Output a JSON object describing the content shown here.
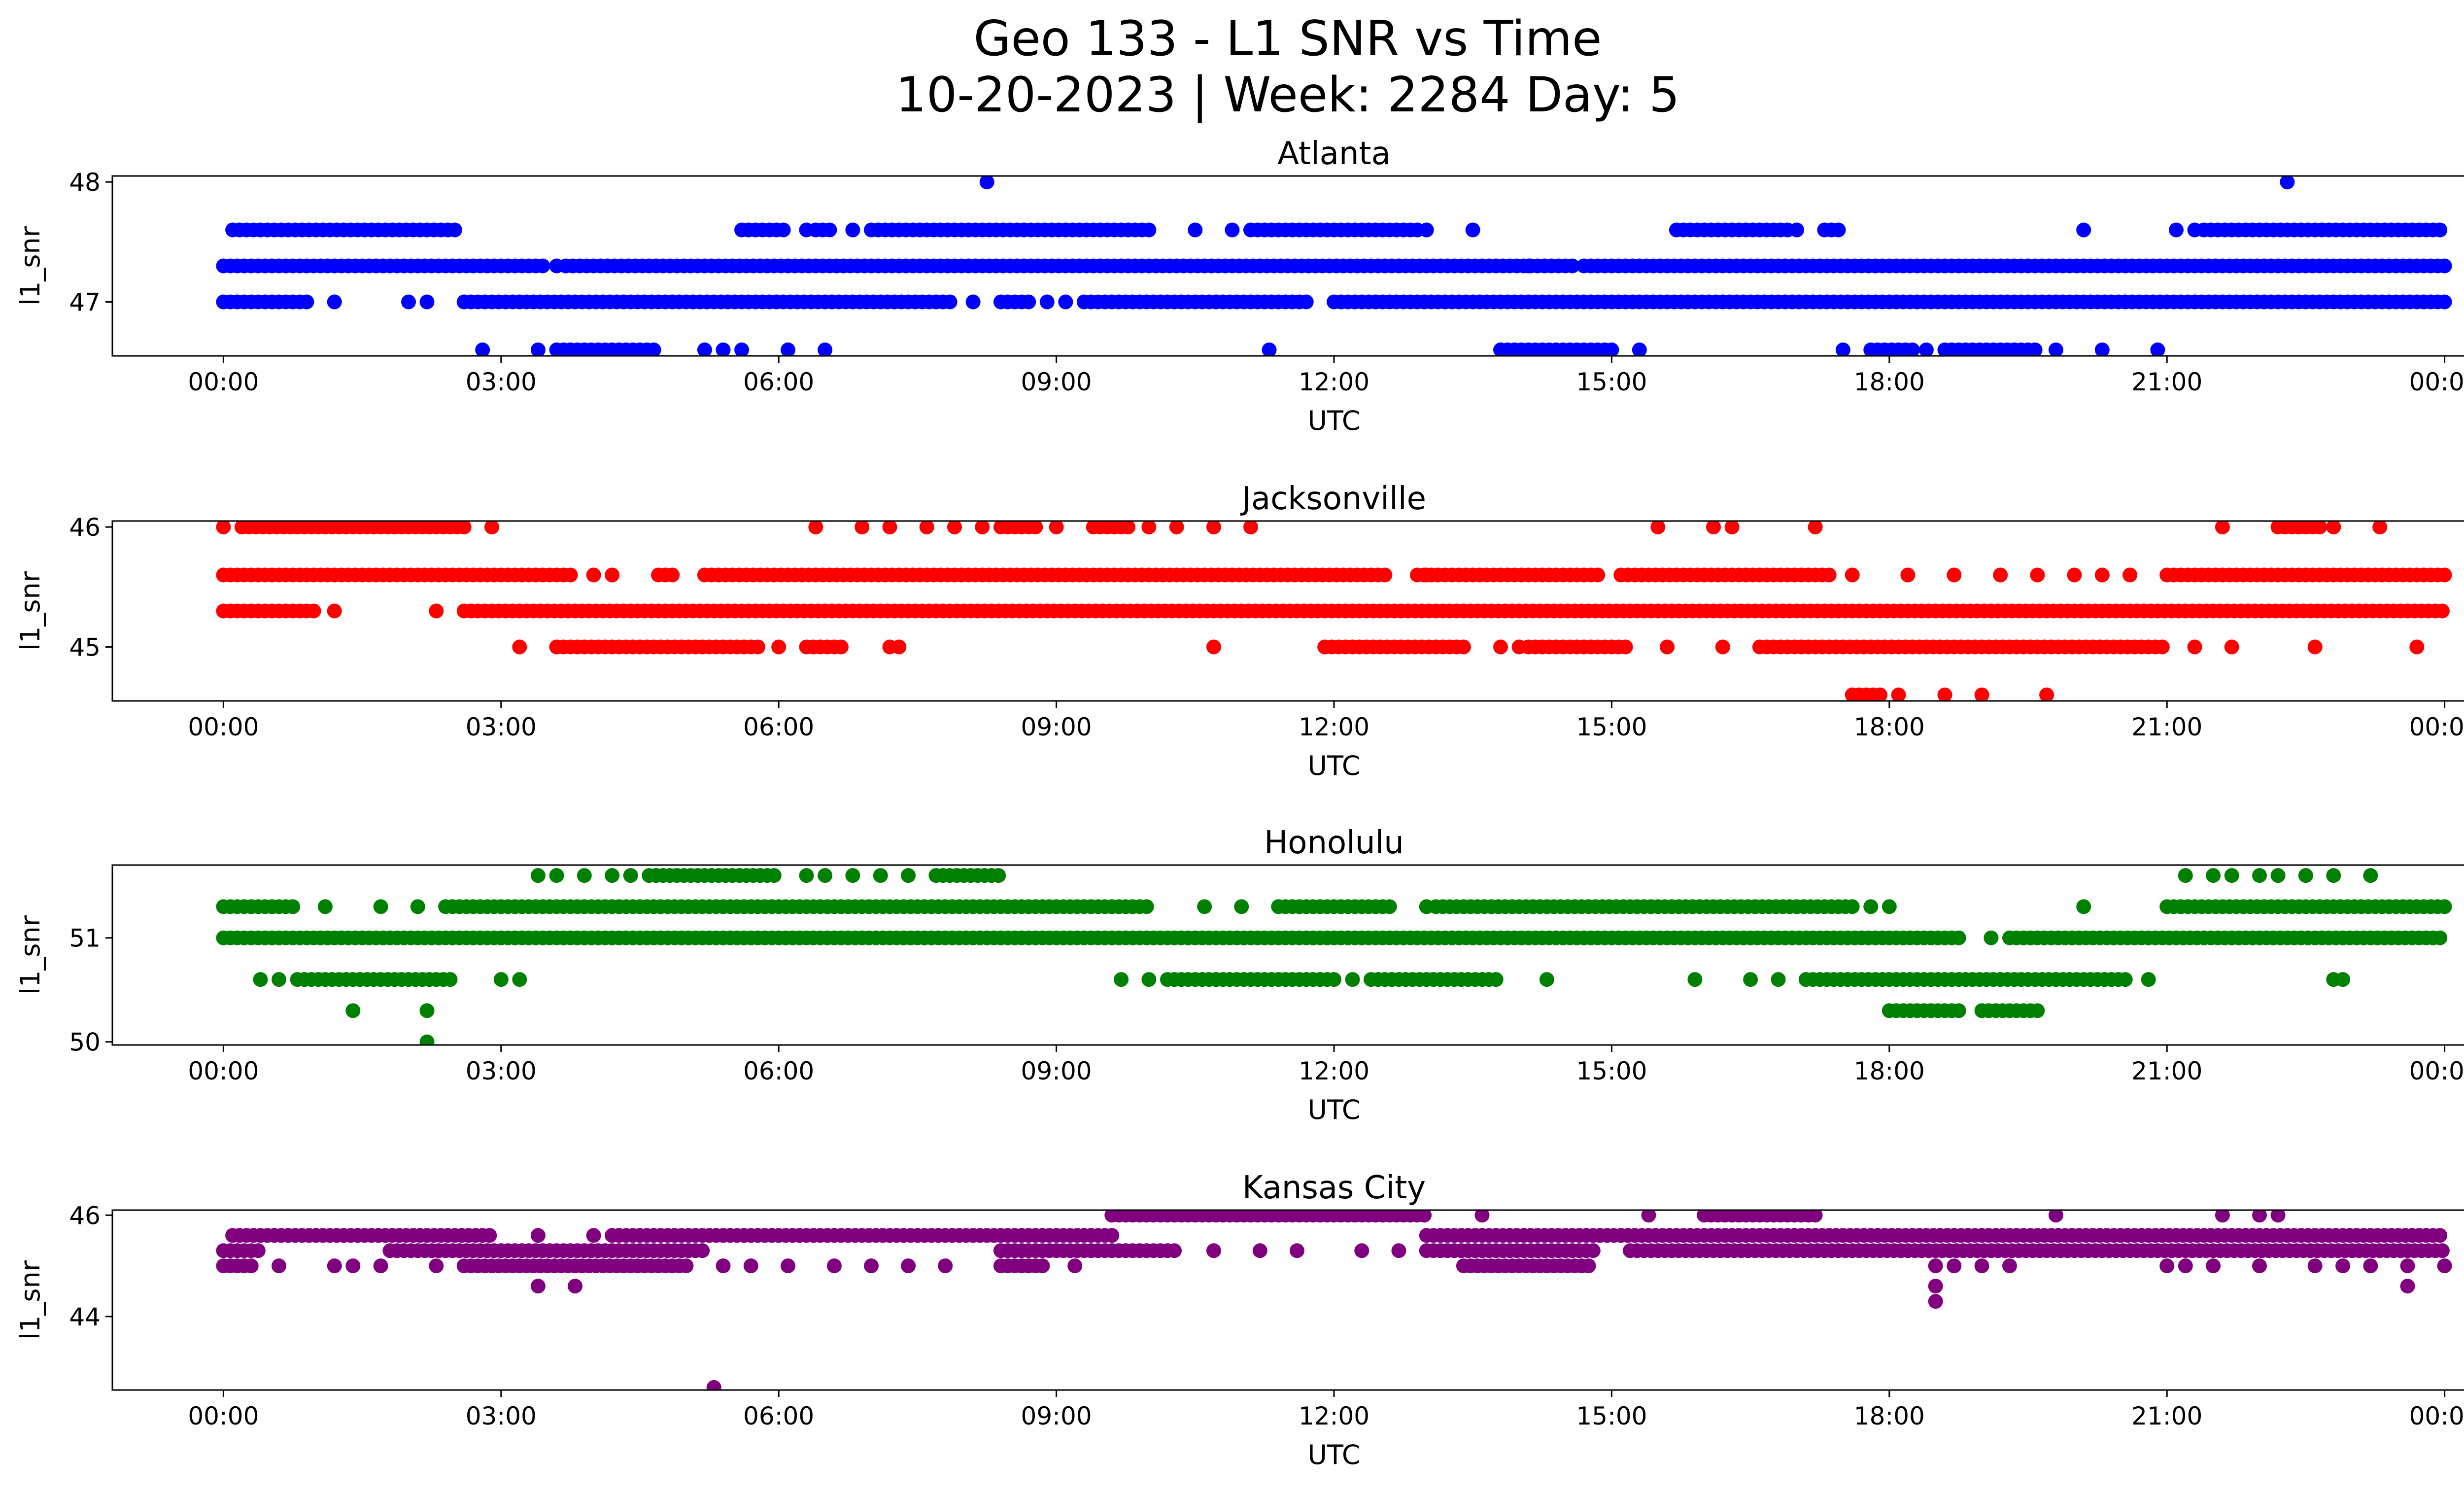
{
  "figure": {
    "title_line1": "Geo 133 - L1 SNR vs Time",
    "title_line2": "10-20-2023 | Week: 2284 Day: 5"
  },
  "chart_data": [
    {
      "type": "scatter",
      "title": "Atlanta",
      "xlabel": "UTC",
      "ylabel": "l1_snr",
      "color": "#0000ff",
      "x_ticks": [
        "00:00",
        "03:00",
        "06:00",
        "09:00",
        "12:00",
        "15:00",
        "18:00",
        "21:00",
        "00:00"
      ],
      "xlim_hours": [
        -1.2,
        25.2
      ],
      "y_ticks": [
        47,
        48
      ],
      "ylim": [
        46.55,
        48.05
      ],
      "levels": [
        {
          "y": 48.0,
          "segments": [],
          "points": [
            8.25,
            22.3
          ]
        },
        {
          "y": 47.6,
          "segments": [
            [
              0.1,
              2.5
            ],
            [
              5.6,
              6.1
            ],
            [
              6.4,
              6.6
            ],
            [
              7.0,
              10.0
            ],
            [
              11.1,
              12.9
            ],
            [
              15.7,
              16.9
            ],
            [
              17.3,
              17.5
            ],
            [
              21.4,
              24.0
            ]
          ],
          "points": [
            6.3,
            6.8,
            10.5,
            10.9,
            13.0,
            13.5,
            17.0,
            20.1,
            21.1,
            21.3
          ]
        },
        {
          "y": 47.3,
          "segments": [
            [
              0.0,
              3.5
            ],
            [
              3.7,
              14.6
            ],
            [
              14.7,
              24.0
            ]
          ],
          "points": [
            3.6,
            14.1
          ]
        },
        {
          "y": 47.0,
          "segments": [
            [
              0.0,
              0.9
            ],
            [
              2.6,
              7.9
            ],
            [
              8.4,
              8.7
            ],
            [
              9.3,
              11.7
            ],
            [
              12.0,
              24.0
            ]
          ],
          "points": [
            1.2,
            2.0,
            2.2,
            8.1,
            8.9,
            9.1,
            22.5
          ]
        },
        {
          "y": 46.6,
          "segments": [
            [
              3.6,
              4.7
            ],
            [
              13.8,
              15.0
            ],
            [
              17.8,
              18.3
            ],
            [
              18.6,
              19.6
            ]
          ],
          "points": [
            2.8,
            3.4,
            5.2,
            5.4,
            5.6,
            6.1,
            6.5,
            11.3,
            15.3,
            17.5,
            18.4,
            19.8,
            20.3,
            20.9
          ]
        }
      ]
    },
    {
      "type": "scatter",
      "title": "Jacksonville",
      "xlabel": "UTC",
      "ylabel": "l1_snr",
      "color": "#ff0000",
      "x_ticks": [
        "00:00",
        "03:00",
        "06:00",
        "09:00",
        "12:00",
        "15:00",
        "18:00",
        "21:00",
        "00:00"
      ],
      "xlim_hours": [
        -1.2,
        25.2
      ],
      "y_ticks": [
        45,
        46
      ],
      "ylim": [
        44.55,
        46.05
      ],
      "levels": [
        {
          "y": 46.0,
          "segments": [
            [
              0.2,
              2.6
            ],
            [
              8.4,
              8.8
            ],
            [
              9.4,
              9.8
            ],
            [
              22.2,
              22.7
            ]
          ],
          "points": [
            0.0,
            2.9,
            6.4,
            6.9,
            7.2,
            7.6,
            7.9,
            8.2,
            9.0,
            10.0,
            10.3,
            10.7,
            11.1,
            15.5,
            16.1,
            16.3,
            17.2,
            21.6,
            22.8,
            23.3
          ]
        },
        {
          "y": 45.6,
          "segments": [
            [
              0.0,
              3.8
            ],
            [
              4.7,
              4.9
            ],
            [
              5.2,
              12.6
            ],
            [
              12.9,
              14.9
            ],
            [
              15.1,
              17.4
            ],
            [
              21.0,
              24.0
            ]
          ],
          "points": [
            4.0,
            4.2,
            13.0,
            17.6,
            18.2,
            18.7,
            19.2,
            19.6,
            20.0,
            20.3,
            20.6
          ]
        },
        {
          "y": 45.3,
          "segments": [
            [
              0.0,
              1.0
            ],
            [
              2.6,
              24.0
            ]
          ],
          "points": [
            1.2,
            2.3
          ]
        },
        {
          "y": 45.0,
          "segments": [
            [
              3.6,
              5.8
            ],
            [
              6.3,
              6.7
            ],
            [
              11.9,
              13.4
            ],
            [
              14.1,
              15.2
            ],
            [
              16.6,
              21.0
            ]
          ],
          "points": [
            3.2,
            6.0,
            7.2,
            7.3,
            10.7,
            13.8,
            14.0,
            15.6,
            16.2,
            21.3,
            21.7,
            22.6,
            23.7
          ]
        },
        {
          "y": 44.6,
          "segments": [
            [
              17.6,
              17.9
            ]
          ],
          "points": [
            18.1,
            18.6,
            19.0,
            19.7
          ]
        }
      ]
    },
    {
      "type": "scatter",
      "title": "Honolulu",
      "xlabel": "UTC",
      "ylabel": "l1_snr",
      "color": "#008000",
      "x_ticks": [
        "00:00",
        "03:00",
        "06:00",
        "09:00",
        "12:00",
        "15:00",
        "18:00",
        "21:00",
        "00:00"
      ],
      "xlim_hours": [
        -1.2,
        25.2
      ],
      "y_ticks": [
        50,
        51
      ],
      "ylim": [
        49.97,
        51.7
      ],
      "levels": [
        {
          "y": 51.6,
          "segments": [
            [
              4.6,
              6.0
            ],
            [
              7.7,
              8.4
            ]
          ],
          "points": [
            3.4,
            3.6,
            3.9,
            4.2,
            4.4,
            6.3,
            6.5,
            6.8,
            7.1,
            7.4,
            21.2,
            21.5,
            21.7,
            22.0,
            22.2,
            22.5,
            22.8,
            23.2
          ]
        },
        {
          "y": 51.3,
          "segments": [
            [
              0.0,
              0.8
            ],
            [
              2.4,
              10.0
            ],
            [
              11.4,
              12.6
            ],
            [
              13.1,
              17.6
            ],
            [
              21.0,
              24.0
            ]
          ],
          "points": [
            1.1,
            1.7,
            2.1,
            10.6,
            11.0,
            13.0,
            17.8,
            18.0,
            20.1
          ]
        },
        {
          "y": 51.0,
          "segments": [
            [
              0.0,
              18.8
            ],
            [
              19.3,
              24.0
            ]
          ],
          "points": [
            19.1
          ]
        },
        {
          "y": 50.6,
          "segments": [
            [
              0.8,
              2.5
            ],
            [
              10.2,
              12.0
            ],
            [
              12.4,
              13.8
            ],
            [
              17.1,
              20.6
            ]
          ],
          "points": [
            0.4,
            0.6,
            3.0,
            3.2,
            9.7,
            10.0,
            12.2,
            14.3,
            15.9,
            16.5,
            16.8,
            20.8,
            22.8,
            22.9
          ]
        },
        {
          "y": 50.3,
          "segments": [
            [
              18.0,
              18.8
            ],
            [
              19.0,
              19.6
            ]
          ],
          "points": [
            1.4,
            2.2
          ]
        },
        {
          "y": 50.0,
          "segments": [],
          "points": [
            2.2
          ]
        }
      ]
    },
    {
      "type": "scatter",
      "title": "Kansas City",
      "xlabel": "UTC",
      "ylabel": "l1_snr",
      "color": "#800080",
      "x_ticks": [
        "00:00",
        "03:00",
        "06:00",
        "09:00",
        "12:00",
        "15:00",
        "18:00",
        "21:00",
        "00:00"
      ],
      "xlim_hours": [
        -1.2,
        25.2
      ],
      "y_ticks": [
        44,
        46
      ],
      "ylim": [
        42.55,
        46.1
      ],
      "levels": [
        {
          "y": 46.0,
          "segments": [
            [
              9.6,
              13.0
            ],
            [
              16.0,
              17.2
            ]
          ],
          "points": [
            13.6,
            15.4,
            19.8,
            21.6,
            22.0,
            22.2
          ]
        },
        {
          "y": 45.6,
          "segments": [
            [
              0.1,
              2.9
            ],
            [
              4.2,
              9.6
            ],
            [
              13.0,
              24.0
            ]
          ],
          "points": [
            3.4,
            4.0
          ]
        },
        {
          "y": 45.3,
          "segments": [
            [
              0.0,
              0.4
            ],
            [
              1.8,
              5.2
            ],
            [
              8.4,
              10.3
            ],
            [
              13.0,
              14.8
            ],
            [
              15.2,
              24.0
            ]
          ],
          "points": [
            10.7,
            11.2,
            11.6,
            12.3,
            12.7
          ]
        },
        {
          "y": 45.0,
          "segments": [
            [
              0.0,
              0.3
            ],
            [
              2.6,
              5.0
            ],
            [
              8.4,
              8.9
            ],
            [
              13.4,
              14.8
            ]
          ],
          "points": [
            0.6,
            1.2,
            1.4,
            1.7,
            2.3,
            5.4,
            5.7,
            6.1,
            6.6,
            7.0,
            7.4,
            7.8,
            9.2,
            18.5,
            18.7,
            19.0,
            19.3,
            21.0,
            21.2,
            21.5,
            22.0,
            22.6,
            22.9,
            23.2,
            23.6,
            24.0
          ]
        },
        {
          "y": 44.6,
          "segments": [],
          "points": [
            3.4,
            3.8,
            18.5,
            23.6
          ]
        },
        {
          "y": 44.3,
          "segments": [],
          "points": [
            18.5
          ]
        },
        {
          "y": 42.6,
          "segments": [],
          "points": [
            5.3
          ]
        }
      ]
    }
  ]
}
